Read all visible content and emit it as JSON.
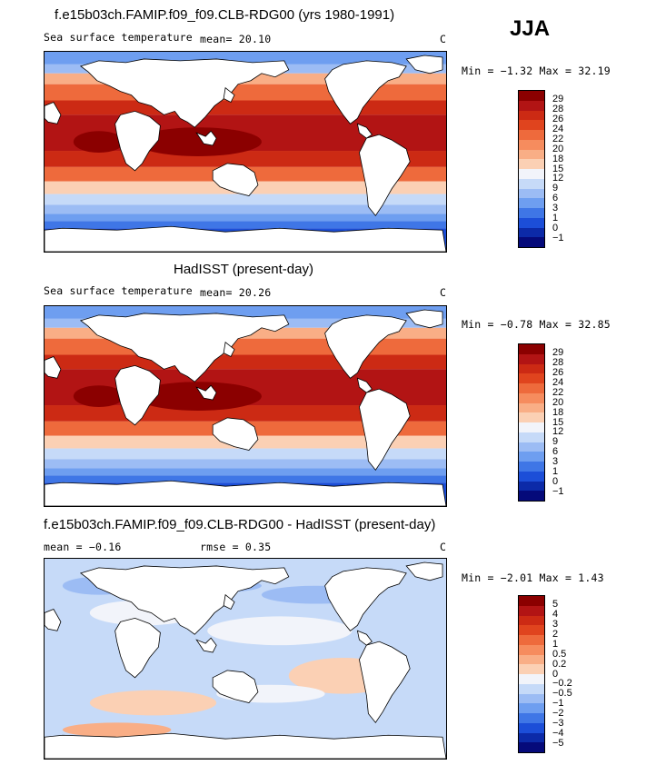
{
  "season": "JJA",
  "panels": [
    {
      "title": "f.e15b03ch.FAMIP.f09_f09.CLB-RDG00 (yrs 1980-1991)",
      "variable": "Sea surface temperature",
      "stat1": "mean=  20.10",
      "stat2": "",
      "units": "C",
      "minmax": "Min =  −1.32 Max =  32.19",
      "colorbar": {
        "labels": [
          "29",
          "28",
          "26",
          "24",
          "22",
          "20",
          "18",
          "15",
          "12",
          "9",
          "6",
          "3",
          "1",
          "0",
          "−1"
        ],
        "colors": [
          "#8b0000",
          "#b21414",
          "#cc2a14",
          "#e0441e",
          "#ee6a3c",
          "#f68c5e",
          "#f9ae86",
          "#fbd0b4",
          "#f2f4fa",
          "#c6daf8",
          "#9cbcf4",
          "#6e9ef0",
          "#3f76e6",
          "#1c4ed8",
          "#0c2aa8",
          "#050a7a"
        ],
        "palette": "warm"
      }
    },
    {
      "title": "HadISST (present-day)",
      "variable": "Sea surface temperature",
      "stat1": "mean=  20.26",
      "stat2": "",
      "units": "C",
      "minmax": "Min =  −0.78 Max =  32.85",
      "colorbar": {
        "labels": [
          "29",
          "28",
          "26",
          "24",
          "22",
          "20",
          "18",
          "15",
          "12",
          "9",
          "6",
          "3",
          "1",
          "0",
          "−1"
        ],
        "colors": [
          "#8b0000",
          "#b21414",
          "#cc2a14",
          "#e0441e",
          "#ee6a3c",
          "#f68c5e",
          "#f9ae86",
          "#fbd0b4",
          "#f2f4fa",
          "#c6daf8",
          "#9cbcf4",
          "#6e9ef0",
          "#3f76e6",
          "#1c4ed8",
          "#0c2aa8",
          "#050a7a"
        ],
        "palette": "warm"
      }
    },
    {
      "title": "f.e15b03ch.FAMIP.f09_f09.CLB-RDG00 - HadISST (present-day)",
      "variable": "",
      "stat1": "mean =  −0.16",
      "stat2": "rmse =    0.35",
      "units": "C",
      "minmax": "Min =  −2.01 Max =   1.43",
      "colorbar": {
        "labels": [
          "5",
          "4",
          "3",
          "2",
          "1",
          "0.5",
          "0.2",
          "0",
          "−0.2",
          "−0.5",
          "−1",
          "−2",
          "−3",
          "−4",
          "−5"
        ],
        "colors": [
          "#8b0000",
          "#b21414",
          "#cc2a14",
          "#e0441e",
          "#ee6a3c",
          "#f68c5e",
          "#f9ae86",
          "#fbd0b4",
          "#f2f4fa",
          "#c6daf8",
          "#9cbcf4",
          "#6e9ef0",
          "#3f76e6",
          "#1c4ed8",
          "#0c2aa8",
          "#050a7a"
        ],
        "palette": "diff"
      }
    }
  ]
}
